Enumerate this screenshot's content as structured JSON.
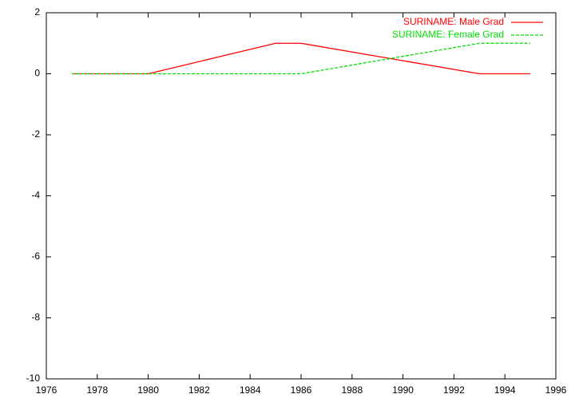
{
  "chart_data": {
    "type": "line",
    "series": [
      {
        "name": "SURINAME: Male Grad",
        "color": "#ff0000",
        "dash": false,
        "x": [
          1977,
          1980,
          1985,
          1986,
          1993,
          1995
        ],
        "values": [
          0,
          0,
          1,
          1,
          0,
          0
        ]
      },
      {
        "name": "SURINAME: Female Grad",
        "color": "#00dd00",
        "dash": true,
        "x": [
          1977,
          1986,
          1993,
          1995
        ],
        "values": [
          0,
          0,
          1,
          1
        ]
      }
    ],
    "xlim": [
      1976,
      1996
    ],
    "xticks": [
      1976,
      1978,
      1980,
      1982,
      1984,
      1986,
      1988,
      1990,
      1992,
      1994,
      1996
    ],
    "ylim": [
      -10,
      2
    ],
    "yticks": [
      -10,
      -8,
      -6,
      -4,
      -2,
      0,
      2
    ],
    "legend": "top-right"
  }
}
